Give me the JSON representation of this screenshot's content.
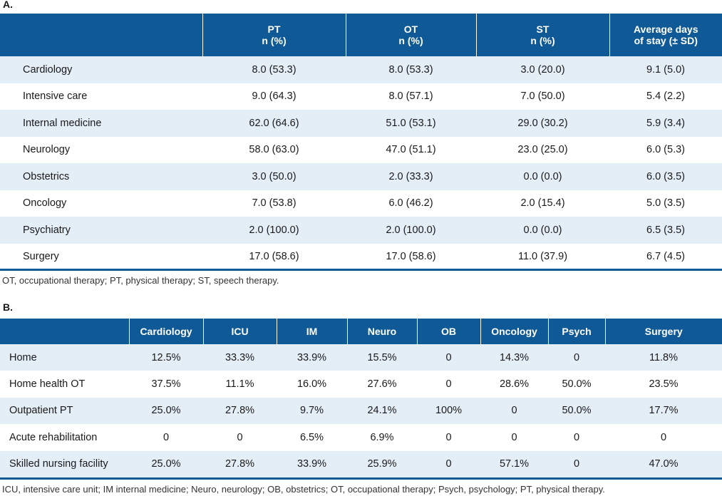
{
  "colors": {
    "header_bg": "#0f5a96",
    "stripe": "#e4eef7"
  },
  "tableA": {
    "label": "A.",
    "headers": [
      "",
      "PT\nn (%)",
      "OT\nn (%)",
      "ST\nn (%)",
      "Average days\nof stay (± SD)"
    ],
    "rows": [
      [
        "Cardiology",
        "8.0 (53.3)",
        "8.0 (53.3)",
        "3.0 (20.0)",
        "9.1 (5.0)"
      ],
      [
        "Intensive care",
        "9.0 (64.3)",
        "8.0 (57.1)",
        "7.0 (50.0)",
        "5.4 (2.2)"
      ],
      [
        "Internal medicine",
        "62.0 (64.6)",
        "51.0 (53.1)",
        "29.0 (30.2)",
        "5.9 (3.4)"
      ],
      [
        "Neurology",
        "58.0 (63.0)",
        "47.0 (51.1)",
        "23.0 (25.0)",
        "6.0 (5.3)"
      ],
      [
        "Obstetrics",
        "3.0 (50.0)",
        "2.0 (33.3)",
        "0.0 (0.0)",
        "6.0 (3.5)"
      ],
      [
        "Oncology",
        "7.0 (53.8)",
        "6.0 (46.2)",
        "2.0 (15.4)",
        "5.0 (3.5)"
      ],
      [
        "Psychiatry",
        "2.0 (100.0)",
        "2.0 (100.0)",
        "0.0 (0.0)",
        "6.5 (3.5)"
      ],
      [
        "Surgery",
        "17.0 (58.6)",
        "17.0 (58.6)",
        "11.0 (37.9)",
        "6.7 (4.5)"
      ]
    ],
    "footnote": "OT, occupational therapy; PT, physical therapy; ST, speech therapy."
  },
  "tableB": {
    "label": "B.",
    "headers": [
      "",
      "Cardiology",
      "ICU",
      "IM",
      "Neuro",
      "OB",
      "Oncology",
      "Psych",
      "Surgery"
    ],
    "rows": [
      [
        "Home",
        "12.5%",
        "33.3%",
        "33.9%",
        "15.5%",
        "0",
        "14.3%",
        "0",
        "11.8%"
      ],
      [
        "Home health OT",
        "37.5%",
        "11.1%",
        "16.0%",
        "27.6%",
        "0",
        "28.6%",
        "50.0%",
        "23.5%"
      ],
      [
        "Outpatient PT",
        "25.0%",
        "27.8%",
        "9.7%",
        "24.1%",
        "100%",
        "0",
        "50.0%",
        "17.7%"
      ],
      [
        "Acute rehabilitation",
        "0",
        "0",
        "6.5%",
        "6.9%",
        "0",
        "0",
        "0",
        "0"
      ],
      [
        "Skilled nursing facility",
        "25.0%",
        "27.8%",
        "33.9%",
        "25.9%",
        "0",
        "57.1%",
        "0",
        "47.0%"
      ]
    ],
    "footnote": "ICU, intensive care unit; IM internal medicine; Neuro, neurology; OB, obstetrics; OT, occupational therapy; Psych, psychology; PT, physical therapy."
  }
}
